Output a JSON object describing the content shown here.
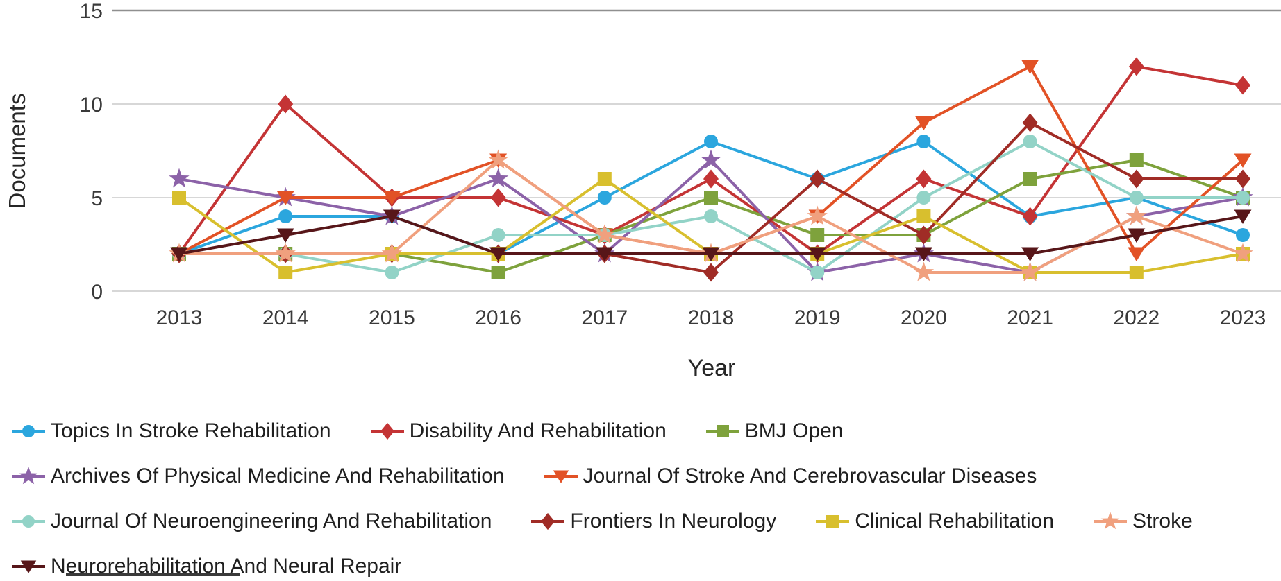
{
  "chart_data": {
    "type": "line",
    "title": "",
    "xlabel": "Year",
    "ylabel": "Documents",
    "x": [
      2013,
      2014,
      2015,
      2016,
      2017,
      2018,
      2019,
      2020,
      2021,
      2022,
      2023
    ],
    "ylim": [
      0,
      15
    ],
    "yticks": [
      0,
      5,
      10,
      15
    ],
    "grid": "horizontal",
    "legend_position": "bottom",
    "series": [
      {
        "name": "Topics In Stroke Rehabilitation",
        "color": "#2BA6DE",
        "marker": "circle",
        "values": [
          2,
          4,
          4,
          2,
          5,
          8,
          6,
          8,
          4,
          5,
          3
        ]
      },
      {
        "name": "Disability And Rehabilitation",
        "color": "#C43435",
        "marker": "diamond",
        "values": [
          2,
          10,
          5,
          5,
          3,
          6,
          2,
          6,
          4,
          12,
          11
        ]
      },
      {
        "name": "BMJ Open",
        "color": "#7EA23C",
        "marker": "square",
        "values": [
          2,
          2,
          2,
          1,
          3,
          5,
          3,
          3,
          6,
          7,
          5
        ]
      },
      {
        "name": "Archives Of Physical Medicine And Rehabilitation",
        "color": "#8C62A8",
        "marker": "star",
        "values": [
          6,
          5,
          4,
          6,
          2,
          7,
          1,
          2,
          1,
          4,
          5
        ]
      },
      {
        "name": "Journal Of Stroke And Cerebrovascular Diseases",
        "color": "#E25226",
        "marker": "triangle-down",
        "values": [
          2,
          5,
          5,
          7,
          3,
          2,
          4,
          9,
          12,
          2,
          7
        ]
      },
      {
        "name": "Journal Of Neuroengineering And Rehabilitation",
        "color": "#92D3C7",
        "marker": "circle",
        "values": [
          2,
          2,
          1,
          3,
          3,
          4,
          1,
          5,
          8,
          5,
          5
        ]
      },
      {
        "name": "Frontiers In Neurology",
        "color": "#A02C26",
        "marker": "diamond",
        "values": [
          2,
          2,
          2,
          2,
          2,
          1,
          6,
          3,
          9,
          6,
          6
        ]
      },
      {
        "name": "Clinical Rehabilitation",
        "color": "#D8BF2E",
        "marker": "square",
        "values": [
          5,
          1,
          2,
          2,
          6,
          2,
          2,
          4,
          1,
          1,
          2
        ]
      },
      {
        "name": "Stroke",
        "color": "#F0A07E",
        "marker": "star",
        "values": [
          2,
          2,
          2,
          7,
          3,
          2,
          4,
          1,
          1,
          4,
          2
        ]
      },
      {
        "name": "Neurorehabilitation And Neural Repair",
        "color": "#571619",
        "marker": "triangle-down",
        "values": [
          2,
          3,
          4,
          2,
          2,
          2,
          2,
          2,
          2,
          3,
          4
        ]
      }
    ]
  }
}
